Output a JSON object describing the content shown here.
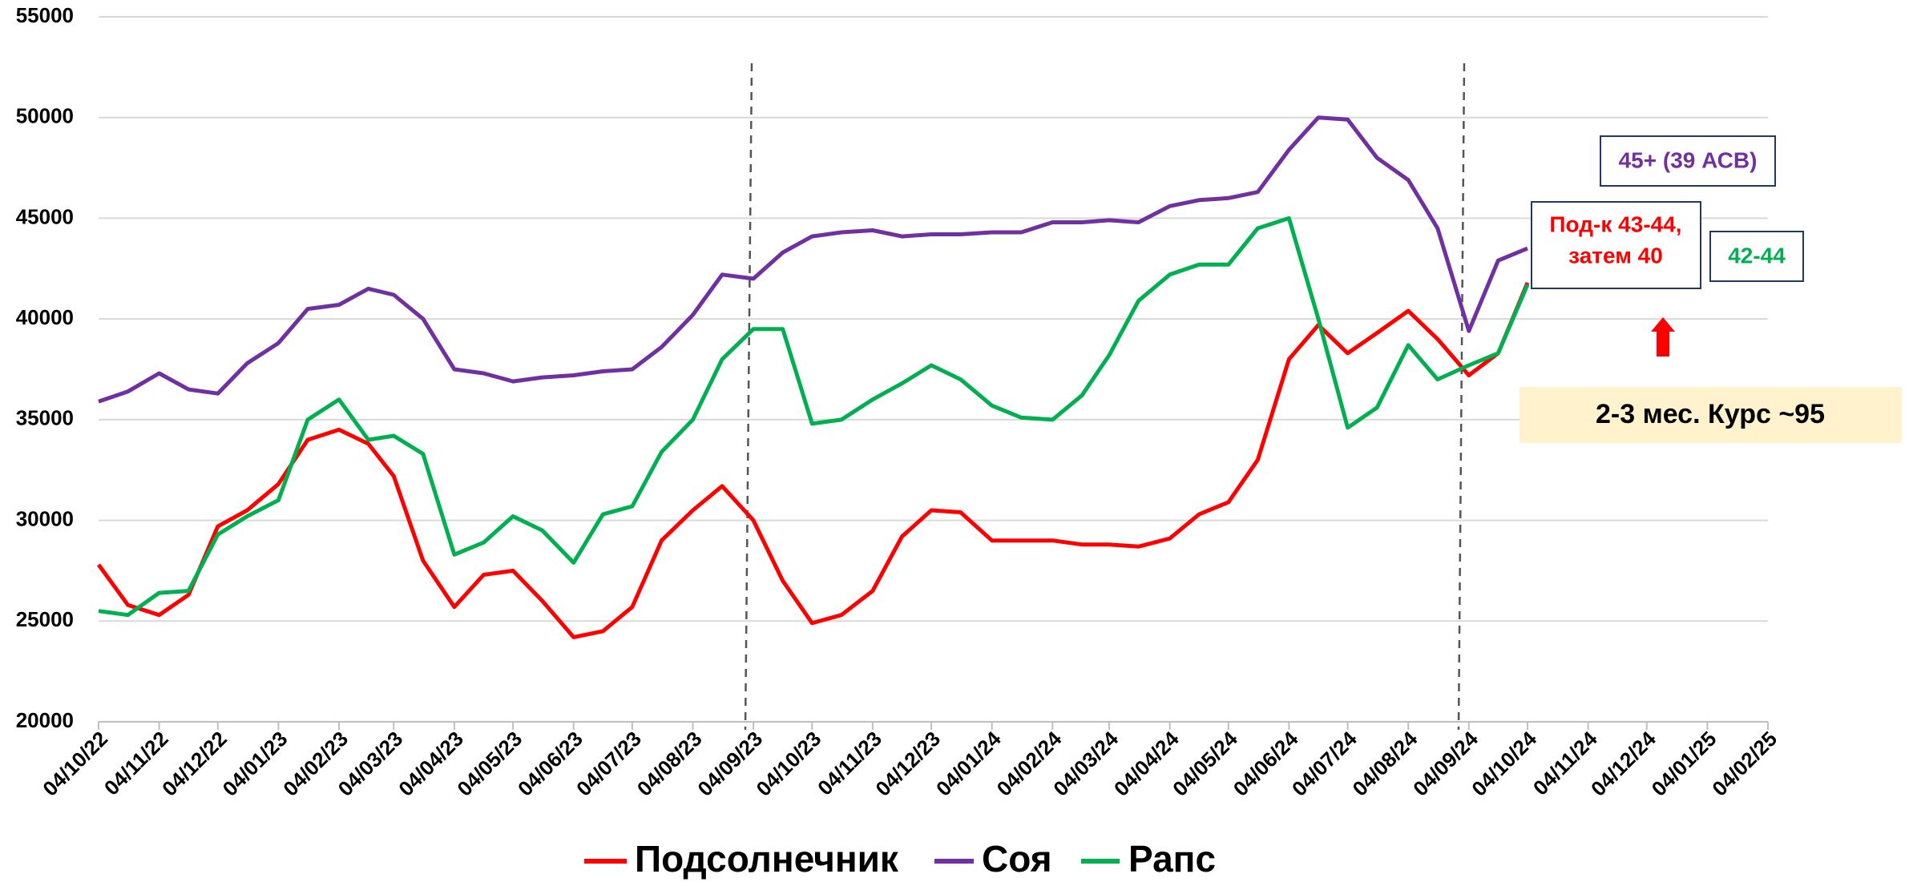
{
  "chart_data": {
    "type": "line",
    "x": [
      "04/10/22",
      "19/10/22",
      "04/11/22",
      "19/11/22",
      "04/12/22",
      "19/12/22",
      "04/01/23",
      "19/01/23",
      "04/02/23",
      "19/02/23",
      "04/03/23",
      "19/03/23",
      "04/04/23",
      "19/04/23",
      "04/05/23",
      "19/05/23",
      "04/06/23",
      "19/06/23",
      "04/07/23",
      "19/07/23",
      "04/08/23",
      "19/08/23",
      "04/09/23",
      "19/09/23",
      "04/10/23",
      "19/10/23",
      "04/11/23",
      "19/11/23",
      "04/12/23",
      "19/12/23",
      "04/01/24",
      "19/01/24",
      "04/02/24",
      "19/02/24",
      "04/03/24",
      "19/03/24",
      "04/04/24",
      "19/04/24",
      "04/05/24",
      "19/05/24",
      "04/06/24",
      "19/06/24",
      "04/07/24",
      "19/07/24",
      "04/08/24",
      "19/08/24",
      "04/09/24",
      "19/09/24",
      "04/10/24"
    ],
    "series": [
      {
        "name": "Подсолнечник",
        "color": "#ff0000",
        "values": [
          27800,
          25800,
          25300,
          26300,
          29700,
          30500,
          31800,
          34000,
          34500,
          33800,
          32200,
          28000,
          25700,
          27300,
          27500,
          26000,
          24200,
          24500,
          25700,
          29000,
          30500,
          31700,
          30000,
          27000,
          24900,
          25300,
          26500,
          29200,
          30500,
          30400,
          29000,
          29000,
          29000,
          28800,
          28800,
          28700,
          29100,
          30300,
          30900,
          33000,
          38000,
          39700,
          38300,
          39300,
          40400,
          39000,
          37200,
          38300,
          41800
        ]
      },
      {
        "name": "Соя",
        "color": "#7030a0",
        "values": [
          35900,
          36400,
          37300,
          36500,
          36300,
          37800,
          38800,
          40500,
          40700,
          41500,
          41200,
          40000,
          37500,
          37300,
          36900,
          37100,
          37200,
          37400,
          37500,
          38600,
          40200,
          42200,
          42000,
          43300,
          44100,
          44300,
          44400,
          44100,
          44200,
          44200,
          44300,
          44300,
          44800,
          44800,
          44900,
          44800,
          45600,
          45900,
          46000,
          46300,
          48400,
          50000,
          49900,
          48000,
          46900,
          44500,
          39400,
          42900,
          43500
        ]
      },
      {
        "name": "Рапс",
        "color": "#00b050",
        "values": [
          25500,
          25300,
          26400,
          26500,
          29300,
          30200,
          31000,
          35000,
          36000,
          34000,
          34200,
          33300,
          28300,
          28900,
          30200,
          29500,
          27900,
          30300,
          30700,
          33400,
          35000,
          38000,
          39500,
          39500,
          34800,
          35000,
          36000,
          36800,
          37700,
          37000,
          35700,
          35100,
          35000,
          36200,
          38200,
          40900,
          42200,
          42700,
          42700,
          44500,
          45000,
          40000,
          34600,
          35600,
          38700,
          37000,
          37700,
          38300,
          41700
        ]
      }
    ],
    "xlim": [
      "04/10/22",
      "04/02/25"
    ],
    "xticks": [
      "04/10/22",
      "04/11/22",
      "04/12/22",
      "04/01/23",
      "04/02/23",
      "04/03/23",
      "04/04/23",
      "04/05/23",
      "04/06/23",
      "04/07/23",
      "04/08/23",
      "04/09/23",
      "04/10/23",
      "04/11/23",
      "04/12/23",
      "04/01/24",
      "04/02/24",
      "04/03/24",
      "04/04/24",
      "04/05/24",
      "04/06/24",
      "04/07/24",
      "04/08/24",
      "04/09/24",
      "04/10/24",
      "04/11/24",
      "04/12/24",
      "04/01/25",
      "04/02/25"
    ],
    "ylim": [
      20000,
      55000
    ],
    "yticks": [
      20000,
      25000,
      30000,
      35000,
      40000,
      45000,
      50000,
      55000
    ],
    "grid": true,
    "legend": "bottom",
    "annotations": [
      "45+ (39 АСВ)",
      "Под-к 43-44,",
      "затем 40",
      "42-44",
      "2-3 мес. Курс ~95"
    ]
  }
}
